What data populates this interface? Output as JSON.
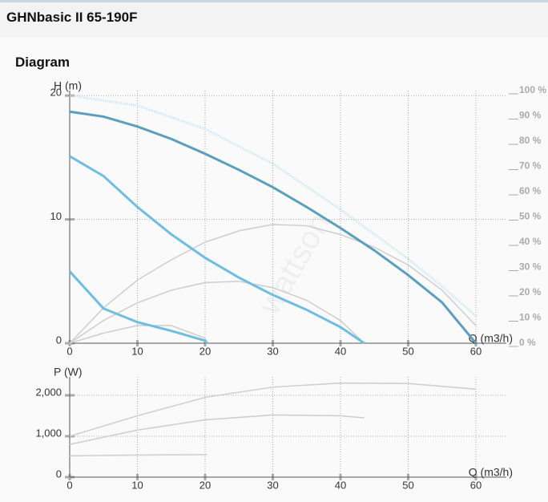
{
  "header": {
    "title": "GHNbasic II 65-190F"
  },
  "section_title": "Diagram",
  "watermark": "wattson",
  "chart_data": [
    {
      "type": "line",
      "y_label": "H (m)",
      "x_label": "Q (m3/h)",
      "xlim": [
        0,
        64.5
      ],
      "ylim": [
        0,
        20.4
      ],
      "y2lim": [
        0,
        100
      ],
      "grid": true,
      "xticks": [
        0,
        10,
        20,
        30,
        40,
        50,
        60
      ],
      "yticks": [
        0,
        10,
        20
      ],
      "y2ticks": [
        {
          "value": 100,
          "label": "100 %"
        },
        {
          "value": 90,
          "label": "90 %"
        },
        {
          "value": 80,
          "label": "80 %"
        },
        {
          "value": 70,
          "label": "70 %"
        },
        {
          "value": 60,
          "label": "60 %"
        },
        {
          "value": 50,
          "label": "50 %"
        },
        {
          "value": 40,
          "label": "40 %"
        },
        {
          "value": 30,
          "label": "30 %"
        },
        {
          "value": 20,
          "label": "20 %"
        },
        {
          "value": 10,
          "label": "10 %"
        },
        {
          "value": 0,
          "label": "0 %"
        }
      ],
      "series": [
        {
          "color": "#bfe3f2",
          "style": "dotted",
          "x": [
            0,
            10,
            20,
            30,
            40,
            50,
            55,
            60.2
          ],
          "values": [
            20,
            19.2,
            17.3,
            14.5,
            10.8,
            6.8,
            4.6,
            2.1
          ]
        },
        {
          "color": "#d0d0d0",
          "axis": "y2",
          "x": [
            0,
            5,
            10,
            15,
            20,
            25,
            30,
            35,
            40,
            45,
            50,
            55,
            60
          ],
          "values": [
            0,
            14,
            25,
            33,
            40,
            44.5,
            47,
            46.5,
            43,
            38,
            31,
            21,
            7
          ]
        },
        {
          "color": "#d0d0d0",
          "axis": "y2",
          "x": [
            0,
            5,
            10,
            15,
            20,
            25,
            30,
            35,
            40,
            43.5
          ],
          "values": [
            0,
            9,
            16,
            21,
            24,
            24.5,
            22,
            17,
            9,
            0
          ]
        },
        {
          "color": "#d0d0d0",
          "axis": "y2",
          "x": [
            0,
            5,
            10,
            15,
            20,
            20.3
          ],
          "values": [
            0,
            4,
            7,
            7,
            2,
            0
          ]
        },
        {
          "color": "#5b9fbf",
          "x": [
            0,
            5,
            10,
            15,
            20,
            25,
            30,
            35,
            40,
            45,
            50,
            55,
            60
          ],
          "values": [
            18.7,
            18.3,
            17.5,
            16.5,
            15.3,
            14,
            12.6,
            11,
            9.3,
            7.5,
            5.5,
            3.3,
            0
          ]
        },
        {
          "color": "#6fbde0",
          "x": [
            0,
            5,
            10,
            15,
            20,
            25,
            30,
            35,
            40,
            43.5
          ],
          "values": [
            15.1,
            13.5,
            11,
            8.8,
            6.9,
            5.3,
            3.9,
            2.7,
            1.3,
            0
          ]
        },
        {
          "color": "#6fbde0",
          "x": [
            0,
            5,
            10,
            15,
            20,
            20.3
          ],
          "values": [
            5.8,
            2.8,
            1.7,
            1,
            0.2,
            0
          ]
        }
      ]
    },
    {
      "type": "line",
      "y_label": "P (W)",
      "x_label": "Q (m3/h)",
      "xlim": [
        0,
        64.5
      ],
      "ylim": [
        0,
        2450
      ],
      "grid": true,
      "xticks": [
        0,
        10,
        20,
        30,
        40,
        50,
        60
      ],
      "yticks": [
        0,
        {
          "value": 1000,
          "label": "1,000"
        },
        {
          "value": 2000,
          "label": "2,000"
        }
      ],
      "series": [
        {
          "color": "#d0d0d0",
          "x": [
            0,
            10,
            20,
            30,
            40,
            50,
            60
          ],
          "values": [
            1000,
            1500,
            1950,
            2200,
            2300,
            2290,
            2150
          ]
        },
        {
          "color": "#d0d0d0",
          "x": [
            0,
            10,
            20,
            30,
            40,
            43.5
          ],
          "values": [
            800,
            1150,
            1400,
            1520,
            1500,
            1450
          ]
        },
        {
          "color": "#d0d0d0",
          "x": [
            0,
            10,
            20,
            20.3
          ],
          "values": [
            520,
            540,
            550,
            550
          ]
        }
      ]
    }
  ]
}
